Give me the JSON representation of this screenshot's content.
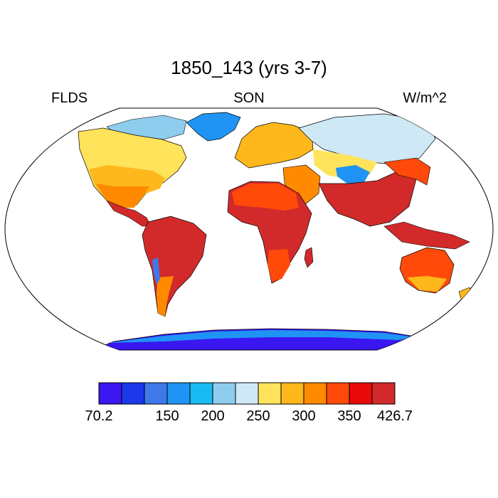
{
  "title": "1850_143 (yrs 3-7)",
  "left_label": "FLDS",
  "center_label": "SON",
  "right_label": "W/m^2",
  "colorbar": {
    "colors": [
      "#3a16f0",
      "#1b38ea",
      "#3f78ea",
      "#1f94f4",
      "#18bcf2",
      "#8fcdee",
      "#cfe8f6",
      "#ffe35a",
      "#ffb81c",
      "#ff8a00",
      "#ff4a0a",
      "#e80a0a",
      "#d22a2a"
    ],
    "tick_labels": [
      "70.2",
      "150",
      "200",
      "250",
      "300",
      "350",
      "426.7"
    ]
  }
}
